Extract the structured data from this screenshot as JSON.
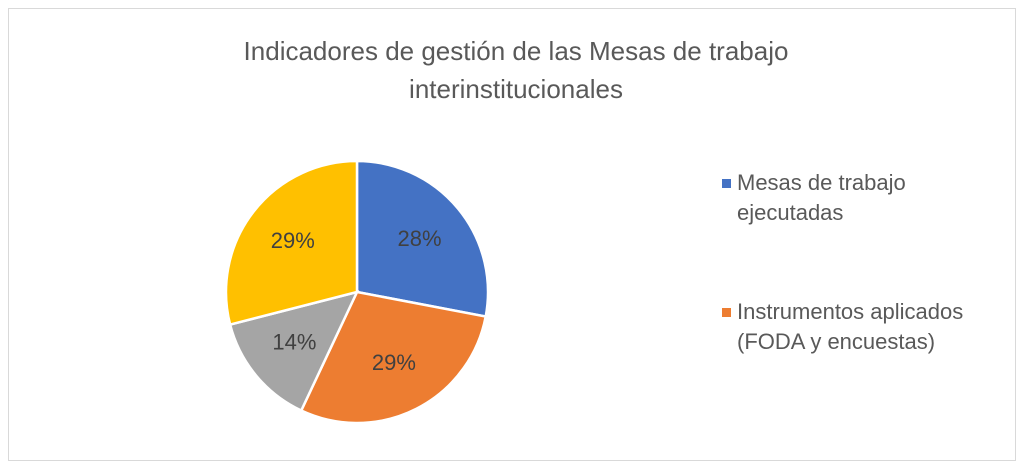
{
  "chart_data": {
    "type": "pie",
    "title": "Indicadores de gestión de las Mesas de trabajo interinstitucionales",
    "categories": [
      "Mesas de trabajo ejecutadas",
      "Instrumentos aplicados (FODA y encuestas)",
      null,
      null
    ],
    "values": [
      28,
      29,
      14,
      29
    ],
    "value_labels": [
      "28%",
      "29%",
      "14%",
      "29%"
    ],
    "colors": [
      "#4472c4",
      "#ed7d31",
      "#a5a5a5",
      "#ffc000"
    ],
    "legend": "right"
  }
}
